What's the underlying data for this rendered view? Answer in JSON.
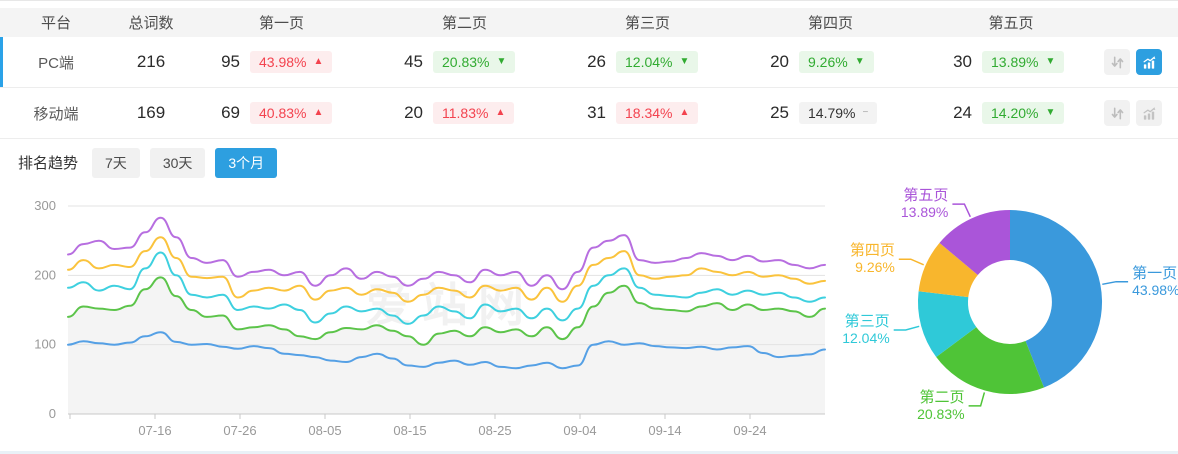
{
  "watermark": "爱站网",
  "colors": {
    "accent_blue": "#2d9fe0",
    "selected_row_bar": "#2aa2e8",
    "badge_up_text": "#f3434f",
    "badge_up_bg": "#fdedee",
    "badge_down_text": "#31ab31",
    "badge_down_bg": "#e9f7e9",
    "badge_flat_bg": "#f3f3f3",
    "badge_flat_text": "#333333"
  },
  "table": {
    "columns": [
      "平台",
      "总词数",
      "第一页",
      "第二页",
      "第三页",
      "第四页",
      "第五页"
    ],
    "rows": [
      {
        "platform": "PC端",
        "total": "216",
        "selected": true,
        "pages": [
          {
            "count": "95",
            "pct": "43.98%",
            "trend": "up"
          },
          {
            "count": "45",
            "pct": "20.83%",
            "trend": "down"
          },
          {
            "count": "26",
            "pct": "12.04%",
            "trend": "down"
          },
          {
            "count": "20",
            "pct": "9.26%",
            "trend": "down"
          },
          {
            "count": "30",
            "pct": "13.89%",
            "trend": "down"
          }
        ],
        "chart_button_active": true
      },
      {
        "platform": "移动端",
        "total": "169",
        "selected": false,
        "pages": [
          {
            "count": "69",
            "pct": "40.83%",
            "trend": "up"
          },
          {
            "count": "20",
            "pct": "11.83%",
            "trend": "up"
          },
          {
            "count": "31",
            "pct": "18.34%",
            "trend": "up"
          },
          {
            "count": "25",
            "pct": "14.79%",
            "trend": "flat"
          },
          {
            "count": "24",
            "pct": "14.20%",
            "trend": "down"
          }
        ],
        "chart_button_active": false
      }
    ]
  },
  "trend_section": {
    "title": "排名趋势",
    "tabs": [
      {
        "label": "7天",
        "active": false
      },
      {
        "label": "30天",
        "active": false
      },
      {
        "label": "3个月",
        "active": true
      }
    ]
  },
  "chart_data": [
    {
      "type": "line",
      "title": "排名趋势（3个月）",
      "x_tick_labels": [
        "07-16",
        "07-26",
        "08-05",
        "08-15",
        "08-25",
        "09-04",
        "09-14",
        "09-24"
      ],
      "y_ticks": [
        0,
        100,
        200,
        300
      ],
      "ylim": [
        0,
        300
      ],
      "grid": true,
      "legend_position": "none",
      "series": [
        {
          "name": "第一页",
          "color": "#55a0e5",
          "area": false,
          "values": [
            100,
            105,
            102,
            100,
            103,
            112,
            118,
            104,
            100,
            101,
            97,
            94,
            98,
            95,
            87,
            85,
            82,
            77,
            75,
            82,
            87,
            80,
            70,
            68,
            74,
            77,
            71,
            75,
            68,
            66,
            70,
            74,
            66,
            70,
            100,
            105,
            100,
            102,
            98,
            96,
            95,
            97,
            93,
            96,
            98,
            88,
            82,
            84,
            86,
            93
          ]
        },
        {
          "name": "第二页",
          "color": "#5cc44a",
          "area": true,
          "values": [
            140,
            155,
            152,
            150,
            156,
            180,
            197,
            170,
            150,
            140,
            142,
            122,
            125,
            128,
            122,
            112,
            108,
            118,
            124,
            122,
            128,
            120,
            112,
            100,
            116,
            120,
            112,
            125,
            118,
            122,
            112,
            125,
            108,
            125,
            155,
            175,
            185,
            160,
            152,
            150,
            148,
            155,
            160,
            150,
            158,
            150,
            152,
            148,
            140,
            152
          ]
        },
        {
          "name": "第三页",
          "color": "#3ed0df",
          "area": false,
          "values": [
            182,
            190,
            178,
            185,
            180,
            210,
            233,
            200,
            172,
            168,
            172,
            150,
            155,
            152,
            158,
            150,
            132,
            145,
            155,
            148,
            152,
            142,
            130,
            142,
            155,
            148,
            138,
            158,
            148,
            152,
            138,
            152,
            135,
            152,
            185,
            200,
            210,
            182,
            172,
            170,
            168,
            175,
            180,
            172,
            178,
            172,
            175,
            168,
            162,
            168
          ]
        },
        {
          "name": "第四页",
          "color": "#fac33d",
          "area": false,
          "values": [
            208,
            222,
            210,
            215,
            212,
            235,
            255,
            225,
            198,
            196,
            198,
            168,
            178,
            182,
            178,
            185,
            165,
            178,
            182,
            172,
            180,
            175,
            162,
            172,
            182,
            178,
            168,
            185,
            178,
            182,
            165,
            182,
            162,
            185,
            215,
            225,
            235,
            200,
            195,
            198,
            200,
            210,
            205,
            200,
            205,
            198,
            200,
            195,
            188,
            192
          ]
        },
        {
          "name": "第五页",
          "color": "#b76ee0",
          "area": false,
          "values": [
            230,
            245,
            250,
            238,
            240,
            262,
            283,
            255,
            225,
            218,
            222,
            198,
            205,
            208,
            200,
            205,
            185,
            200,
            210,
            195,
            205,
            198,
            185,
            195,
            205,
            200,
            190,
            208,
            200,
            205,
            185,
            200,
            180,
            205,
            240,
            250,
            258,
            222,
            218,
            220,
            225,
            232,
            228,
            222,
            228,
            220,
            222,
            215,
            210,
            215
          ]
        }
      ]
    },
    {
      "type": "pie",
      "donut": true,
      "slices": [
        {
          "label": "第一页",
          "value": 43.98,
          "display": "43.98%",
          "color": "#3a99dc"
        },
        {
          "label": "第二页",
          "value": 20.83,
          "display": "20.83%",
          "color": "#4fc437"
        },
        {
          "label": "第三页",
          "value": 12.04,
          "display": "12.04%",
          "color": "#2fc9d8"
        },
        {
          "label": "第四页",
          "value": 9.26,
          "display": "9.26%",
          "color": "#f8b62d"
        },
        {
          "label": "第五页",
          "value": 13.89,
          "display": "13.89%",
          "color": "#aa55d9"
        }
      ]
    }
  ]
}
